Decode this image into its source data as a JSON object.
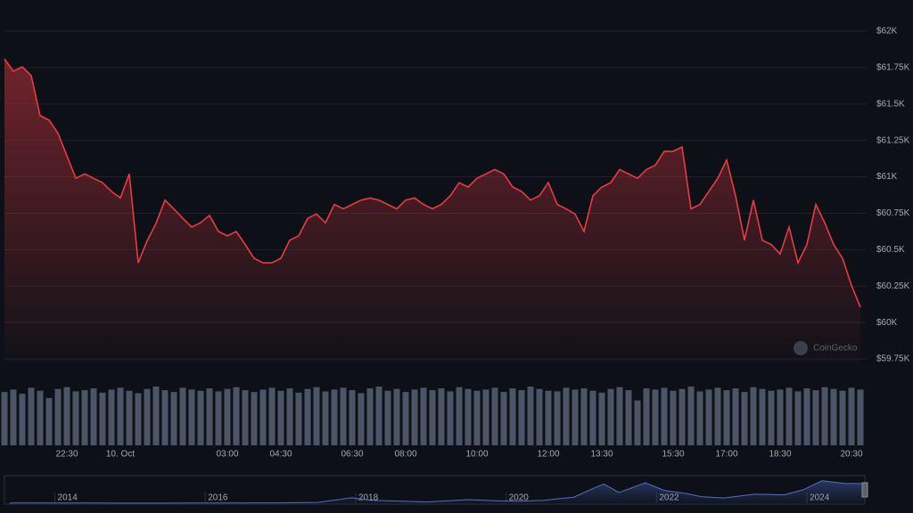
{
  "chart_data": [
    {
      "type": "area",
      "color": "#ea3943",
      "grid": true,
      "watermark": "CoinGecko",
      "x": [
        -3.25,
        -3,
        -2.75,
        -2.5,
        -2.25,
        -2,
        -1.75,
        -1.5,
        -1.25,
        -1,
        -0.75,
        -0.5,
        -0.25,
        0,
        0.25,
        0.5,
        0.75,
        1,
        1.25,
        1.5,
        1.75,
        2,
        2.25,
        2.5,
        2.75,
        3,
        3.25,
        3.5,
        3.75,
        4,
        4.25,
        4.5,
        4.75,
        5,
        5.25,
        5.5,
        5.75,
        6,
        6.25,
        6.5,
        6.75,
        7,
        7.25,
        7.5,
        7.75,
        8,
        8.25,
        8.5,
        8.75,
        9,
        9.25,
        9.5,
        9.75,
        10,
        10.25,
        10.5,
        10.75,
        11,
        11.25,
        11.5,
        11.75,
        12,
        12.25,
        12.5,
        12.75,
        13,
        13.25,
        13.5,
        13.75,
        14,
        14.25,
        14.5,
        14.75,
        15,
        15.25,
        15.5,
        15.75,
        16,
        16.25,
        16.5,
        16.75,
        17,
        17.25,
        17.5,
        17.75,
        18,
        18.25,
        18.5,
        18.75,
        19,
        19.25,
        19.5,
        19.75,
        20,
        20.25,
        20.5,
        20.75
      ],
      "values": [
        61810,
        61725,
        61755,
        61695,
        61420,
        61390,
        61300,
        61145,
        60990,
        61020,
        60990,
        60960,
        60900,
        60855,
        61020,
        60410,
        60560,
        60680,
        60840,
        60780,
        60715,
        60655,
        60685,
        60735,
        60625,
        60595,
        60625,
        60535,
        60440,
        60410,
        60410,
        60440,
        60565,
        60595,
        60715,
        60745,
        60685,
        60810,
        60780,
        60810,
        60840,
        60855,
        60840,
        60810,
        60780,
        60840,
        60855,
        60810,
        60780,
        60810,
        60870,
        60960,
        60930,
        60990,
        61020,
        61050,
        61020,
        60930,
        60900,
        60840,
        60870,
        60960,
        60810,
        60780,
        60745,
        60625,
        60870,
        60930,
        60960,
        61050,
        61020,
        60990,
        61050,
        61080,
        61175,
        61175,
        61205,
        60780,
        60810,
        60900,
        60990,
        61115,
        60870,
        60565,
        60840,
        60565,
        60535,
        60470,
        60655,
        60410,
        60535,
        60810,
        60685,
        60535,
        60440,
        60255,
        60105
      ],
      "xlim": [
        -3.25,
        20.75
      ],
      "ylim": [
        59750,
        62000
      ],
      "xticks": [
        {
          "value": -1.5,
          "label": "22:30"
        },
        {
          "value": 0,
          "label": "10. Oct"
        },
        {
          "value": 3,
          "label": "03:00"
        },
        {
          "value": 4.5,
          "label": "04:30"
        },
        {
          "value": 6.5,
          "label": "06:30"
        },
        {
          "value": 8,
          "label": "08:00"
        },
        {
          "value": 10,
          "label": "10:00"
        },
        {
          "value": 12,
          "label": "12:00"
        },
        {
          "value": 13.5,
          "label": "13:30"
        },
        {
          "value": 15.5,
          "label": "15:30"
        },
        {
          "value": 17,
          "label": "17:00"
        },
        {
          "value": 18.5,
          "label": "18:30"
        },
        {
          "value": 20.5,
          "label": "20:30"
        }
      ],
      "yticks": [
        {
          "value": 62000,
          "label": "$62K"
        },
        {
          "value": 61750,
          "label": "$61.75K"
        },
        {
          "value": 61500,
          "label": "$61.5K"
        },
        {
          "value": 61250,
          "label": "$61.25K"
        },
        {
          "value": 61000,
          "label": "$61K"
        },
        {
          "value": 60750,
          "label": "$60.75K"
        },
        {
          "value": 60500,
          "label": "$60.5K"
        },
        {
          "value": 60250,
          "label": "$60.25K"
        },
        {
          "value": 60000,
          "label": "$60K"
        },
        {
          "value": 59750,
          "label": "$59.75K"
        }
      ]
    },
    {
      "type": "bar",
      "color": "#4b5565",
      "values": [
        88,
        92,
        85,
        95,
        90,
        78,
        93,
        96,
        89,
        91,
        94,
        87,
        92,
        95,
        90,
        86,
        93,
        97,
        91,
        88,
        95,
        92,
        90,
        94,
        89,
        93,
        96,
        91,
        88,
        92,
        95,
        90,
        94,
        87,
        93,
        96,
        89,
        92,
        95,
        91,
        86,
        94,
        97,
        90,
        93,
        88,
        92,
        95,
        91,
        94,
        89,
        96,
        93,
        90,
        92,
        95,
        88,
        94,
        91,
        97,
        93,
        90,
        89,
        95,
        92,
        94,
        90,
        87,
        93,
        96,
        91,
        74,
        94,
        92,
        95,
        90,
        93,
        97,
        89,
        92,
        95,
        91,
        94,
        88,
        96,
        93,
        90,
        92,
        95,
        89,
        94,
        91,
        96,
        93,
        90,
        95,
        92
      ]
    },
    {
      "type": "line",
      "color": "#4f6fc9",
      "x": [
        2013.4,
        2014,
        2014.5,
        2015,
        2015.5,
        2016,
        2016.5,
        2017,
        2017.5,
        2017.95,
        2018.2,
        2018.5,
        2018.95,
        2019.5,
        2019.9,
        2020.2,
        2020.5,
        2020.9,
        2021.1,
        2021.3,
        2021.5,
        2021.85,
        2022.1,
        2022.4,
        2022.6,
        2022.9,
        2023.3,
        2023.7,
        2023.95,
        2024.2,
        2024.5,
        2024.77
      ],
      "values": [
        700,
        600,
        500,
        300,
        250,
        430,
        650,
        1000,
        2500,
        17000,
        9000,
        7000,
        3800,
        11000,
        7200,
        6000,
        9200,
        19000,
        40000,
        60000,
        33000,
        64000,
        40000,
        30000,
        20000,
        16500,
        28000,
        26000,
        42000,
        70000,
        62000,
        61000
      ],
      "xlim": [
        2013.33,
        2024.77
      ],
      "ylim": [
        0,
        75000
      ],
      "xticks": [
        2014,
        2016,
        2018,
        2020,
        2022,
        2024
      ]
    }
  ]
}
